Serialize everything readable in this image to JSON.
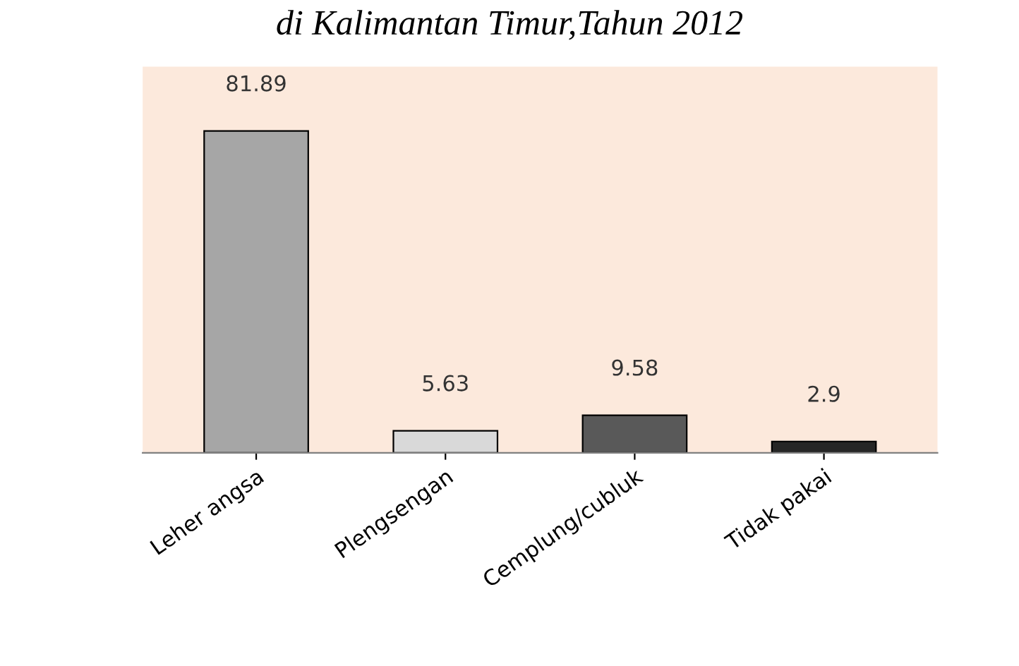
{
  "chart_data": {
    "type": "bar",
    "title": "di Kalimantan Timur,Tahun 2012",
    "categories": [
      "Leher angsa",
      "Plengsengan",
      "Cemplung/cubluk",
      "Tidak pakai"
    ],
    "values": [
      81.89,
      5.63,
      9.58,
      2.9
    ],
    "colors": [
      "#a6a6a6",
      "#d9d9d9",
      "#595959",
      "#262626"
    ],
    "data_labels": true,
    "grid": false,
    "legend": false
  }
}
